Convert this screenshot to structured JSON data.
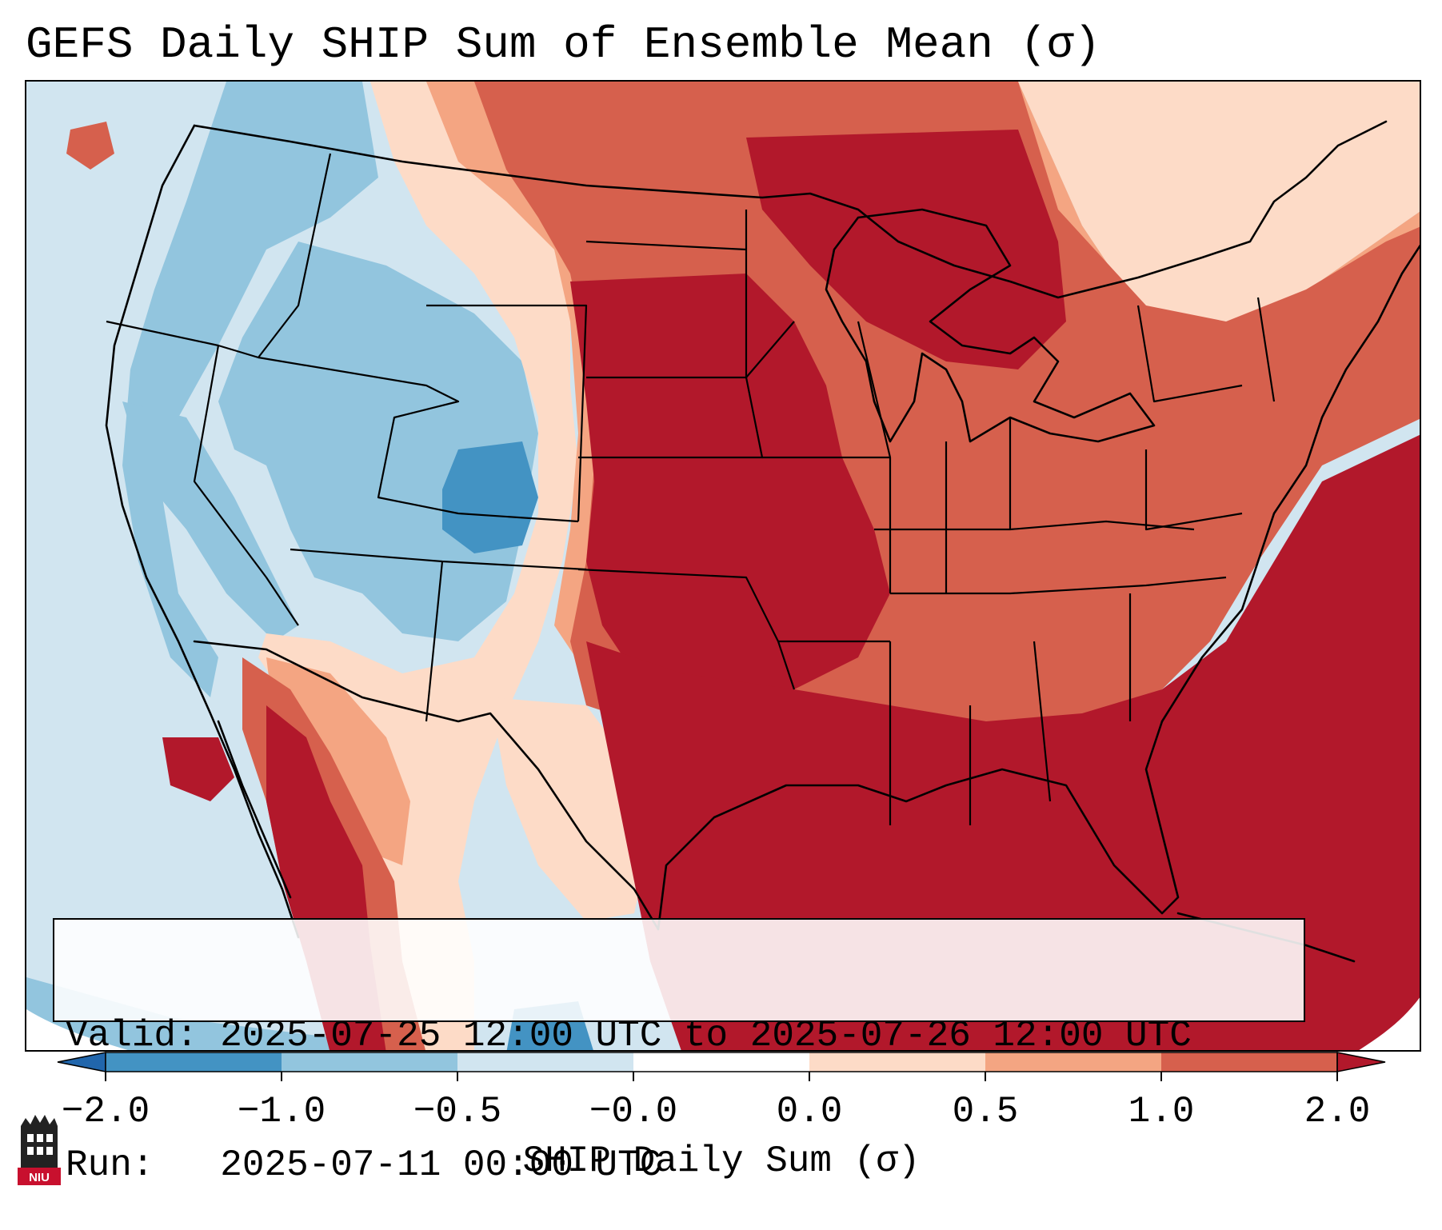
{
  "title": "GEFS Daily SHIP Sum of Ensemble Mean (σ)",
  "valid_label": "Valid:",
  "valid_value": "2025-07-25 12:00 UTC to 2025-07-26 12:00 UTC",
  "run_label": "Run:",
  "run_value": "2025-07-11 00:00 UTC",
  "colorbar": {
    "label": "SHIP Daily Sum (σ)",
    "ticks": [
      "−2.0",
      "−1.0",
      "−0.5",
      "−0.0",
      "0.0",
      "0.5",
      "1.0",
      "2.0"
    ],
    "bins": [
      {
        "range": "< -2.0",
        "color": "#2166ac"
      },
      {
        "range": "-2.0 to -1.0",
        "color": "#4393c3"
      },
      {
        "range": "-1.0 to -0.5",
        "color": "#92c5de"
      },
      {
        "range": "-0.5 to -0.0",
        "color": "#d1e5f0"
      },
      {
        "range": "-0.0 to 0.0",
        "color": "#ffffff"
      },
      {
        "range": "0.0 to 0.5",
        "color": "#fddbc7"
      },
      {
        "range": "0.5 to 1.0",
        "color": "#f4a582"
      },
      {
        "range": "1.0 to 2.0",
        "color": "#d6604d"
      },
      {
        "range": "> 2.0",
        "color": "#b2182b"
      }
    ]
  },
  "logo": {
    "text": "NIU",
    "icon": "niu-logo-icon"
  },
  "colors": {
    "strong_negative": "#4393c3",
    "moderate_negative": "#92c5de",
    "weak_negative": "#d1e5f0",
    "weak_positive": "#fddbc7",
    "moderate_positive": "#f4a582",
    "strong_positive": "#d6604d",
    "extreme_positive": "#b2182b"
  }
}
